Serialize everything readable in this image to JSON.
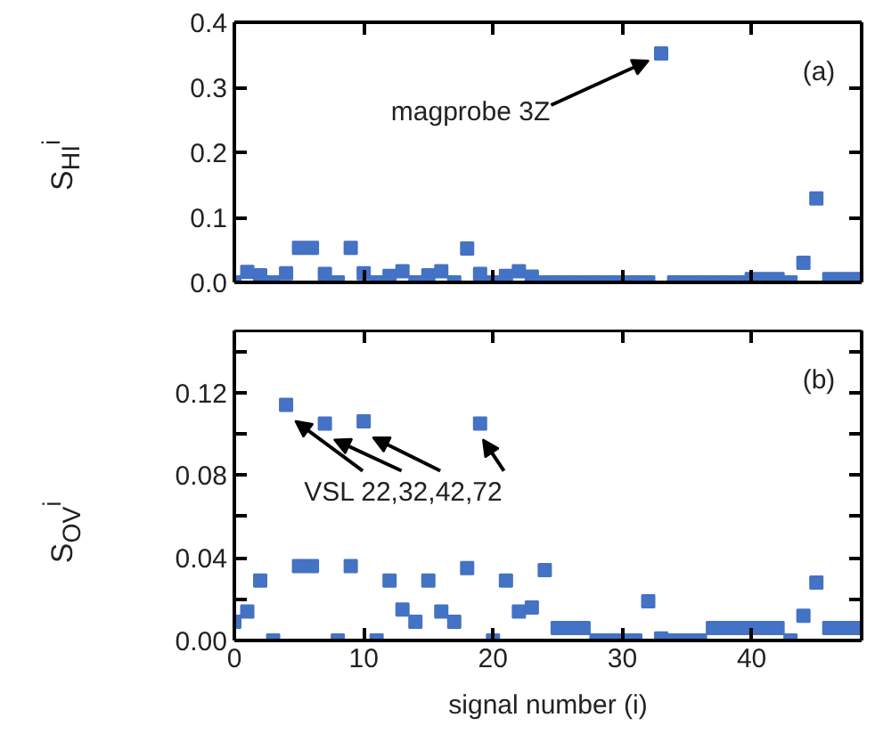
{
  "chart_data": [
    {
      "type": "scatter",
      "ylabel": "S$_{HI}$$^{i}$",
      "color": "#4472c4",
      "marker": "square",
      "grid": false,
      "tick_labels": "y",
      "x": [
        0,
        1,
        2,
        3,
        4,
        5,
        6,
        7,
        8,
        9,
        10,
        11,
        12,
        13,
        14,
        15,
        16,
        17,
        18,
        19,
        20,
        21,
        22,
        23,
        24,
        25,
        26,
        27,
        28,
        29,
        30,
        31,
        32,
        33,
        34,
        35,
        36,
        37,
        38,
        39,
        40,
        41,
        42,
        43,
        44,
        45,
        46,
        47,
        48
      ],
      "values": [
        0,
        0.016,
        0.011,
        0,
        0.014,
        0.053,
        0.053,
        0.013,
        0,
        0.053,
        0.014,
        0,
        0.01,
        0.017,
        0,
        0.011,
        0.017,
        0,
        0.052,
        0.013,
        0,
        0.01,
        0.017,
        0.009,
        0,
        0,
        0,
        0,
        0,
        0,
        0,
        0,
        0,
        0.352,
        0,
        0,
        0,
        0,
        0,
        0,
        0.005,
        0.005,
        0.005,
        0,
        0.03,
        0.129,
        0.005,
        0.005,
        0.005
      ],
      "xlim": [
        0,
        48.5
      ],
      "xticks": [
        0,
        10,
        20,
        30,
        40
      ],
      "ylim": [
        0,
        0.4
      ],
      "yticks": [
        {
          "value": 0,
          "label": "0.0"
        },
        0.1,
        0.2,
        0.3,
        0.4
      ],
      "annotations": [
        {
          "text": "magprobe 3Z",
          "x": 33,
          "y": 0.352
        },
        "(a)"
      ]
    },
    {
      "type": "scatter",
      "ylabel": "S$_{OV}$$^{i}$",
      "xlabel": "signal number (i)",
      "color": "#4472c4",
      "marker": "square",
      "grid": false,
      "x": [
        0,
        1,
        2,
        3,
        4,
        5,
        6,
        7,
        8,
        9,
        10,
        11,
        12,
        13,
        14,
        15,
        16,
        17,
        18,
        19,
        20,
        21,
        22,
        23,
        24,
        25,
        26,
        27,
        28,
        29,
        30,
        31,
        32,
        33,
        34,
        35,
        36,
        37,
        38,
        39,
        40,
        41,
        42,
        43,
        44,
        45,
        46,
        47,
        48
      ],
      "values": [
        0.009,
        0.014,
        0.029,
        0,
        0.114,
        0.036,
        0.036,
        0.105,
        0,
        0.036,
        0.106,
        0,
        0.029,
        0.015,
        0.009,
        0.029,
        0.014,
        0.009,
        0.035,
        0.105,
        0,
        0.029,
        0.014,
        0.016,
        0.034,
        0.006,
        0.006,
        0.006,
        0,
        0,
        0,
        0,
        0.019,
        0.001,
        0,
        0,
        0,
        0.006,
        0.006,
        0.006,
        0.006,
        0.006,
        0.006,
        0,
        0.012,
        0.028,
        0.006,
        0.006,
        0.006
      ],
      "xlim": [
        0,
        48.5
      ],
      "xticks": [
        0,
        10,
        20,
        30,
        40
      ],
      "ylim": [
        0,
        0.15
      ],
      "yticks": [
        {
          "value": 0,
          "label": "0.00"
        },
        {
          "value": 0.02,
          "label": null
        },
        0.04,
        {
          "value": 0.06,
          "label": null
        },
        0.08,
        {
          "value": 0.1,
          "label": null
        },
        0.12,
        {
          "value": 0.14,
          "label": null
        }
      ],
      "annotations": [
        {
          "text": "VSL 22,32,42,72",
          "x": 4,
          "y": 0.114
        },
        "(b)"
      ]
    }
  ]
}
